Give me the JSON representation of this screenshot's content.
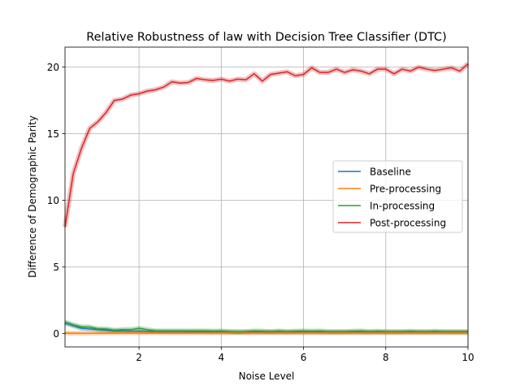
{
  "chart_data": {
    "type": "line",
    "title": "Relative Robustness of law with Decision Tree Classifier (DTC)",
    "xlabel": "Noise Level",
    "ylabel": "Difference of Demographic Parity",
    "xlim": [
      0.2,
      10
    ],
    "ylim": [
      -1,
      21.5
    ],
    "xticks": [
      2,
      4,
      6,
      8,
      10
    ],
    "yticks": [
      0,
      5,
      10,
      15,
      20
    ],
    "grid": true,
    "legend_position": "center-right",
    "x": [
      0.2,
      0.4,
      0.6,
      0.8,
      1.0,
      1.2,
      1.4,
      1.6,
      1.8,
      2.0,
      2.2,
      2.4,
      2.6,
      2.8,
      3.0,
      3.2,
      3.4,
      3.6,
      3.8,
      4.0,
      4.2,
      4.4,
      4.6,
      4.8,
      5.0,
      5.2,
      5.4,
      5.6,
      5.8,
      6.0,
      6.2,
      6.4,
      6.6,
      6.8,
      7.0,
      7.2,
      7.4,
      7.6,
      7.8,
      8.0,
      8.2,
      8.4,
      8.6,
      8.8,
      9.0,
      9.2,
      9.4,
      9.6,
      9.8,
      10.0
    ],
    "series": [
      {
        "name": "Baseline",
        "color": "#1f77b4",
        "values": [
          0.8,
          0.6,
          0.4,
          0.35,
          0.3,
          0.25,
          0.2,
          0.2,
          0.18,
          0.18,
          0.17,
          0.16,
          0.15,
          0.15,
          0.15,
          0.14,
          0.14,
          0.14,
          0.13,
          0.13,
          0.13,
          0.13,
          0.12,
          0.12,
          0.12,
          0.12,
          0.12,
          0.12,
          0.12,
          0.12,
          0.12,
          0.11,
          0.11,
          0.11,
          0.11,
          0.11,
          0.11,
          0.11,
          0.11,
          0.11,
          0.11,
          0.11,
          0.11,
          0.11,
          0.11,
          0.11,
          0.11,
          0.11,
          0.11,
          0.11
        ]
      },
      {
        "name": "Pre-processing",
        "color": "#ff7f0e",
        "values": [
          0.05,
          0.04,
          0.03,
          0.03,
          0.04,
          0.05,
          0.05,
          0.06,
          0.06,
          0.06,
          0.06,
          0.06,
          0.06,
          0.06,
          0.06,
          0.06,
          0.06,
          0.06,
          0.06,
          0.06,
          0.06,
          0.06,
          0.06,
          0.06,
          0.06,
          0.06,
          0.06,
          0.06,
          0.06,
          0.06,
          0.06,
          0.06,
          0.06,
          0.06,
          0.06,
          0.06,
          0.06,
          0.06,
          0.06,
          0.06,
          0.06,
          0.06,
          0.06,
          0.06,
          0.06,
          0.06,
          0.06,
          0.06,
          0.06,
          0.06
        ]
      },
      {
        "name": "In-processing",
        "color": "#2ca02c",
        "values": [
          0.85,
          0.65,
          0.5,
          0.5,
          0.35,
          0.35,
          0.25,
          0.3,
          0.3,
          0.4,
          0.3,
          0.2,
          0.2,
          0.2,
          0.2,
          0.2,
          0.2,
          0.2,
          0.18,
          0.2,
          0.15,
          0.12,
          0.15,
          0.2,
          0.18,
          0.15,
          0.2,
          0.15,
          0.18,
          0.2,
          0.18,
          0.2,
          0.15,
          0.15,
          0.15,
          0.18,
          0.2,
          0.15,
          0.18,
          0.15,
          0.15,
          0.15,
          0.18,
          0.15,
          0.15,
          0.18,
          0.15,
          0.15,
          0.15,
          0.15
        ]
      },
      {
        "name": "Post-processing",
        "color": "#d62728",
        "values": [
          8.0,
          12.0,
          13.9,
          15.4,
          15.9,
          16.6,
          17.5,
          17.6,
          17.9,
          18.0,
          18.2,
          18.3,
          18.5,
          18.9,
          18.8,
          18.85,
          19.15,
          19.05,
          19.0,
          19.1,
          18.95,
          19.1,
          19.05,
          19.5,
          18.95,
          19.45,
          19.55,
          19.65,
          19.35,
          19.45,
          19.95,
          19.6,
          19.6,
          19.85,
          19.6,
          19.8,
          19.7,
          19.5,
          19.85,
          19.85,
          19.5,
          19.85,
          19.7,
          20.0,
          19.85,
          19.75,
          19.85,
          19.95,
          19.7,
          20.25
        ]
      }
    ]
  }
}
